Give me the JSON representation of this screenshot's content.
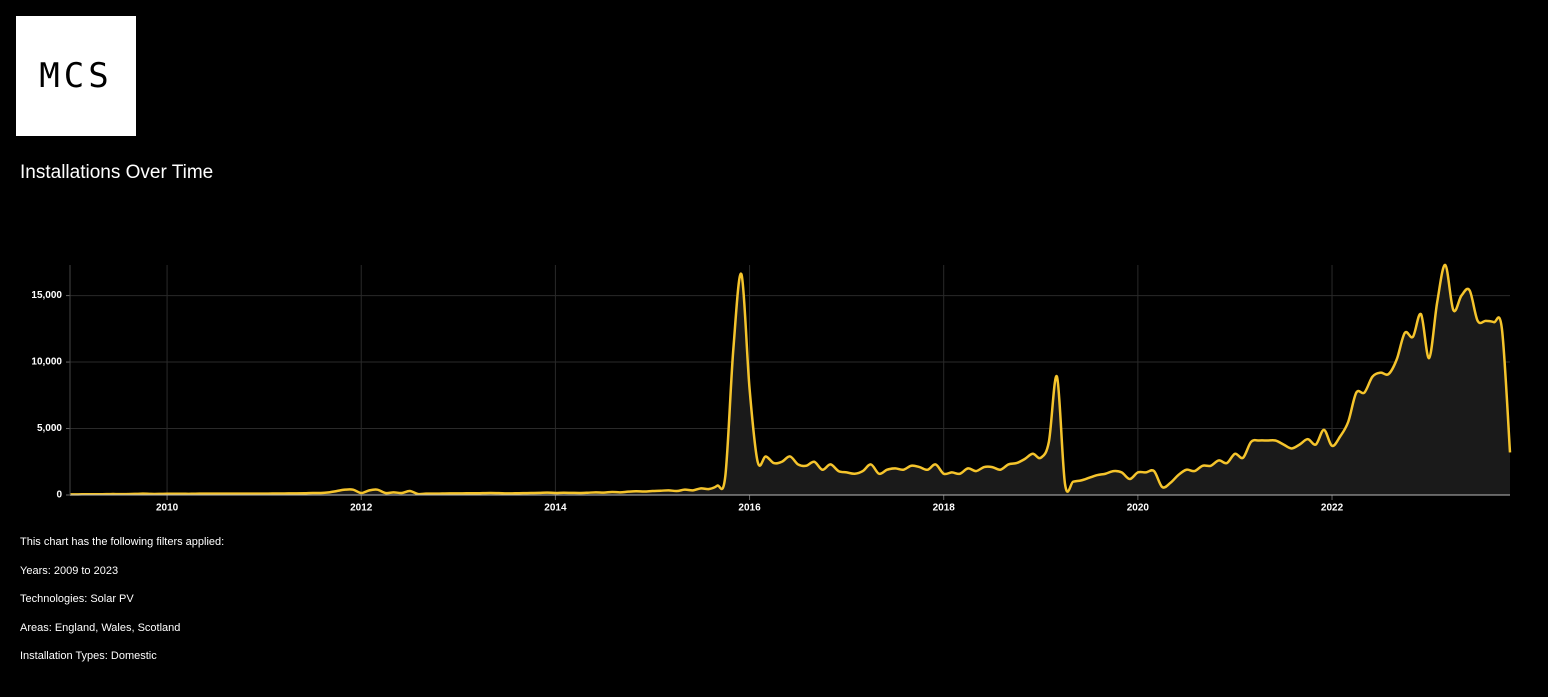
{
  "logo": "MCS",
  "chart_data": {
    "type": "area",
    "title": "Installations Over Time",
    "x": [
      "2009-01",
      "2009-02",
      "2009-03",
      "2009-04",
      "2009-05",
      "2009-06",
      "2009-07",
      "2009-08",
      "2009-09",
      "2009-10",
      "2009-11",
      "2009-12",
      "2010-01",
      "2010-02",
      "2010-03",
      "2010-04",
      "2010-05",
      "2010-06",
      "2010-07",
      "2010-08",
      "2010-09",
      "2010-10",
      "2010-11",
      "2010-12",
      "2011-01",
      "2011-02",
      "2011-03",
      "2011-04",
      "2011-05",
      "2011-06",
      "2011-07",
      "2011-08",
      "2011-09",
      "2011-10",
      "2011-11",
      "2011-12",
      "2012-01",
      "2012-02",
      "2012-03",
      "2012-04",
      "2012-05",
      "2012-06",
      "2012-07",
      "2012-08",
      "2012-09",
      "2012-10",
      "2012-11",
      "2012-12",
      "2013-01",
      "2013-02",
      "2013-03",
      "2013-04",
      "2013-05",
      "2013-06",
      "2013-07",
      "2013-08",
      "2013-09",
      "2013-10",
      "2013-11",
      "2013-12",
      "2014-01",
      "2014-02",
      "2014-03",
      "2014-04",
      "2014-05",
      "2014-06",
      "2014-07",
      "2014-08",
      "2014-09",
      "2014-10",
      "2014-11",
      "2014-12",
      "2015-01",
      "2015-02",
      "2015-03",
      "2015-04",
      "2015-05",
      "2015-06",
      "2015-07",
      "2015-08",
      "2015-09",
      "2015-10",
      "2015-11",
      "2015-12",
      "2016-01",
      "2016-02",
      "2016-03",
      "2016-04",
      "2016-05",
      "2016-06",
      "2016-07",
      "2016-08",
      "2016-09",
      "2016-10",
      "2016-11",
      "2016-12",
      "2017-01",
      "2017-02",
      "2017-03",
      "2017-04",
      "2017-05",
      "2017-06",
      "2017-07",
      "2017-08",
      "2017-09",
      "2017-10",
      "2017-11",
      "2017-12",
      "2018-01",
      "2018-02",
      "2018-03",
      "2018-04",
      "2018-05",
      "2018-06",
      "2018-07",
      "2018-08",
      "2018-09",
      "2018-10",
      "2018-11",
      "2018-12",
      "2019-01",
      "2019-02",
      "2019-03",
      "2019-04",
      "2019-05",
      "2019-06",
      "2019-07",
      "2019-08",
      "2019-09",
      "2019-10",
      "2019-11",
      "2019-12",
      "2020-01",
      "2020-02",
      "2020-03",
      "2020-04",
      "2020-05",
      "2020-06",
      "2020-07",
      "2020-08",
      "2020-09",
      "2020-10",
      "2020-11",
      "2020-12",
      "2021-01",
      "2021-02",
      "2021-03",
      "2021-04",
      "2021-05",
      "2021-06",
      "2021-07",
      "2021-08",
      "2021-09",
      "2021-10",
      "2021-11",
      "2021-12",
      "2022-01",
      "2022-02",
      "2022-03",
      "2022-04",
      "2022-05",
      "2022-06",
      "2022-07",
      "2022-08",
      "2022-09",
      "2022-10",
      "2022-11",
      "2022-12",
      "2023-01",
      "2023-02",
      "2023-03",
      "2023-04",
      "2023-05",
      "2023-06",
      "2023-07",
      "2023-08",
      "2023-09",
      "2023-10",
      "2023-11"
    ],
    "values": [
      50,
      50,
      60,
      60,
      60,
      70,
      70,
      70,
      80,
      100,
      80,
      80,
      90,
      90,
      90,
      90,
      100,
      100,
      100,
      100,
      100,
      100,
      100,
      100,
      100,
      110,
      110,
      120,
      120,
      130,
      150,
      150,
      200,
      300,
      400,
      400,
      150,
      350,
      400,
      150,
      200,
      150,
      300,
      80,
      100,
      100,
      110,
      120,
      120,
      130,
      130,
      140,
      150,
      140,
      120,
      130,
      140,
      150,
      160,
      180,
      150,
      170,
      160,
      150,
      170,
      200,
      180,
      230,
      200,
      250,
      280,
      260,
      300,
      320,
      350,
      300,
      400,
      350,
      500,
      450,
      700,
      1400,
      11000,
      16600,
      8000,
      2500,
      2900,
      2400,
      2500,
      2900,
      2300,
      2200,
      2500,
      1900,
      2300,
      1800,
      1700,
      1600,
      1800,
      2300,
      1600,
      1900,
      2000,
      1900,
      2200,
      2100,
      1900,
      2300,
      1600,
      1700,
      1600,
      2000,
      1800,
      2100,
      2100,
      1900,
      2300,
      2400,
      2700,
      3100,
      2800,
      4000,
      8900,
      800,
      1000,
      1100,
      1300,
      1500,
      1600,
      1800,
      1700,
      1200,
      1700,
      1700,
      1800,
      600,
      900,
      1500,
      1900,
      1800,
      2200,
      2200,
      2600,
      2400,
      3100,
      2800,
      4000,
      4100,
      4100,
      4100,
      3800,
      3500,
      3800,
      4200,
      3800,
      4900,
      3700,
      4400,
      5500,
      7700,
      7700,
      8900,
      9200,
      9100,
      10200,
      12200,
      11900,
      13600,
      10300,
      14500,
      17300,
      13900,
      15000,
      15400,
      13100,
      13100,
      13000,
      12500,
      3200
    ],
    "color": "#f5c42c",
    "fill": "#1a1a1a",
    "xlim": [
      "2009-01",
      "2023-11"
    ],
    "xticks": [
      {
        "value": "2010-01",
        "label": "2010"
      },
      {
        "value": "2012-01",
        "label": "2012"
      },
      {
        "value": "2014-01",
        "label": "2014"
      },
      {
        "value": "2016-01",
        "label": "2016"
      },
      {
        "value": "2018-01",
        "label": "2018"
      },
      {
        "value": "2020-01",
        "label": "2020"
      },
      {
        "value": "2022-01",
        "label": "2022"
      }
    ],
    "ylim": [
      0,
      17300
    ],
    "yticks": [
      0,
      {
        "value": 5000,
        "label": "5,000"
      },
      {
        "value": 10000,
        "label": "10,000"
      },
      {
        "value": 15000,
        "label": "15,000"
      }
    ],
    "grid": true
  },
  "filters": {
    "heading": "This chart has the following filters applied:",
    "items": [
      "Years: 2009 to 2023",
      "Technologies: Solar PV",
      "Areas: England, Wales, Scotland",
      "Installation Types: Domestic"
    ]
  }
}
